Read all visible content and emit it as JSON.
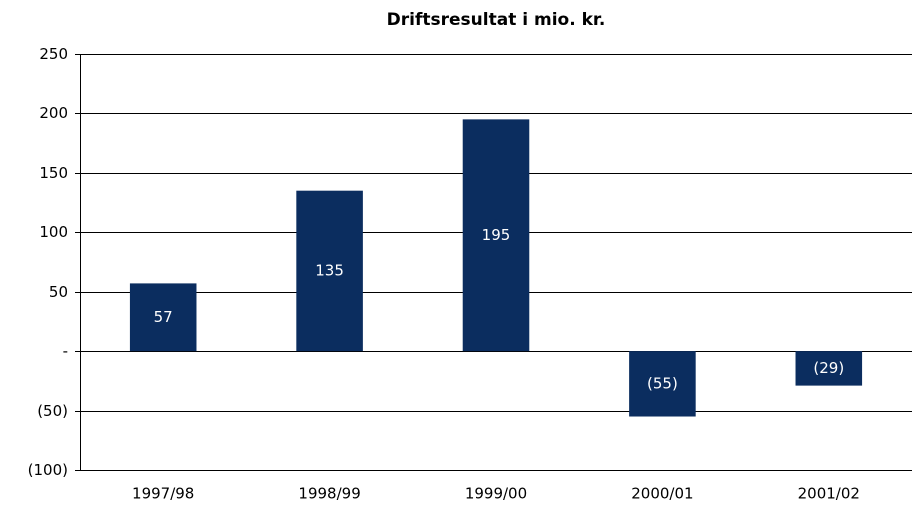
{
  "chart_data": {
    "type": "bar",
    "title": "Driftsresultat i mio. kr.",
    "categories": [
      "1997/98",
      "1998/99",
      "1999/00",
      "2000/01",
      "2001/02"
    ],
    "values": [
      57,
      135,
      195,
      -55,
      -29
    ],
    "value_labels": [
      "57",
      "135",
      "195",
      "(55)",
      "(29)"
    ],
    "color": "#0b2d5f",
    "ylim": [
      -100,
      250
    ],
    "yticks": [
      {
        "value": -100,
        "label": "(100)"
      },
      {
        "value": -50,
        "label": "(50)"
      },
      {
        "value": 0,
        "label": "-"
      },
      50,
      100,
      150,
      200,
      250
    ],
    "grid": true
  }
}
